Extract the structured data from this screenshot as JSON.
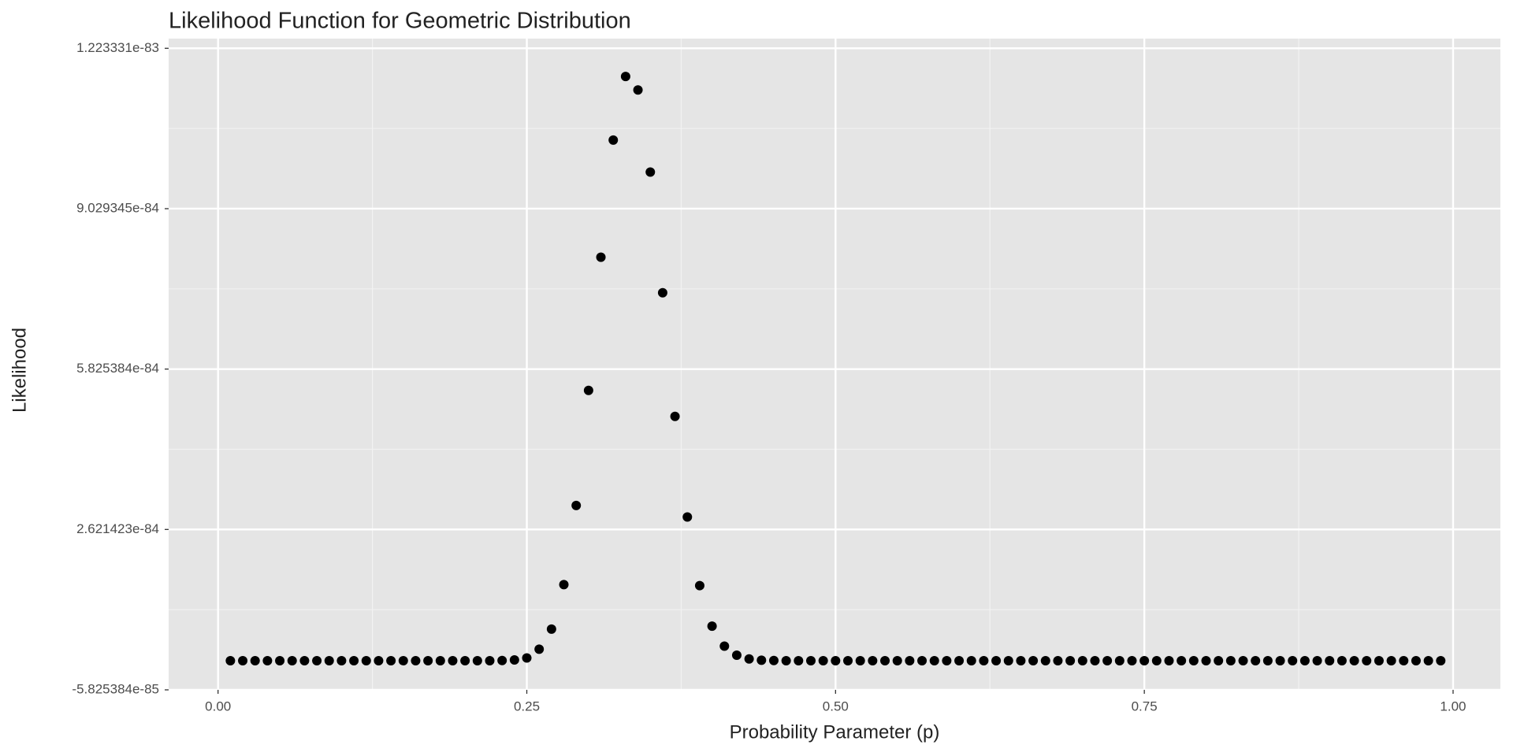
{
  "chart_data": {
    "type": "scatter",
    "title": "Likelihood Function for Geometric Distribution",
    "x_label": "Probability Parameter (p)",
    "y_label": "Likelihood",
    "x": [
      0.01,
      0.02,
      0.03,
      0.04,
      0.05,
      0.06,
      0.07,
      0.08,
      0.09,
      0.1,
      0.11,
      0.12,
      0.13,
      0.14,
      0.15,
      0.16,
      0.17,
      0.18,
      0.19,
      0.2,
      0.21,
      0.22,
      0.23,
      0.24,
      0.25,
      0.26,
      0.27,
      0.28,
      0.29,
      0.3,
      0.31,
      0.32,
      0.33,
      0.34,
      0.35,
      0.36,
      0.37,
      0.38,
      0.39,
      0.4,
      0.41,
      0.42,
      0.43,
      0.44,
      0.45,
      0.46,
      0.47,
      0.48,
      0.49,
      0.5,
      0.51,
      0.52,
      0.53,
      0.54,
      0.55,
      0.56,
      0.57,
      0.58,
      0.59,
      0.6,
      0.61,
      0.62,
      0.63,
      0.64,
      0.65,
      0.66,
      0.67,
      0.68,
      0.69,
      0.7,
      0.71,
      0.72,
      0.73,
      0.74,
      0.75,
      0.76,
      0.77,
      0.78,
      0.79,
      0.8,
      0.81,
      0.82,
      0.83,
      0.84,
      0.85,
      0.86,
      0.87,
      0.88,
      0.89,
      0.9,
      0.91,
      0.92,
      0.93,
      0.94,
      0.95,
      0.96,
      0.97,
      0.98,
      0.99
    ],
    "values": [
      0,
      0,
      0,
      0,
      0,
      0,
      0,
      0,
      0,
      0,
      0,
      0,
      0,
      0,
      0,
      0,
      0,
      0,
      0,
      0,
      0,
      0,
      4e-87,
      1.5e-86,
      5.4e-86,
      2.3e-85,
      6.3e-85,
      1.52e-84,
      3.1e-84,
      5.4e-84,
      8.06e-84,
      1.04e-83,
      1.167e-83,
      1.14e-83,
      9.76e-84,
      7.35e-84,
      4.88e-84,
      2.87e-84,
      1.5e-84,
      6.9e-85,
      2.9e-85,
      1.1e-85,
      3.5e-86,
      1e-86,
      3e-87,
      0,
      0,
      0,
      0,
      0,
      0,
      0,
      0,
      0,
      0,
      0,
      0,
      0,
      0,
      0,
      0,
      0,
      0,
      0,
      0,
      0,
      0,
      0,
      0,
      0,
      0,
      0,
      0,
      0,
      0,
      0,
      0,
      0,
      0,
      0,
      0,
      0,
      0,
      0,
      0,
      0,
      0,
      0,
      0,
      0,
      0,
      0,
      0,
      0,
      0,
      0,
      0,
      0,
      0
    ],
    "color": "#000000",
    "xlim": [
      -0.04,
      1.0383
    ],
    "ylim": [
      -5.825384e-85,
      1.2427e-83
    ],
    "xticks": [
      {
        "value": 0,
        "label": "0.00"
      },
      {
        "value": 0.25,
        "label": "0.25"
      },
      {
        "value": 0.5,
        "label": "0.50"
      },
      {
        "value": 0.75,
        "label": "0.75"
      },
      {
        "value": 1,
        "label": "1.00"
      }
    ],
    "yticks": [
      -5.825384e-85,
      2.621423e-84,
      5.825384e-84,
      9.029345e-84,
      1.223331e-83
    ],
    "x_minor_ticks": [
      0.125,
      0.375,
      0.625,
      0.875
    ],
    "y_minor_ticks": [
      1.0194e-84,
      4.2234e-84,
      7.4274e-84,
      1.0631e-83
    ],
    "grid": true
  }
}
